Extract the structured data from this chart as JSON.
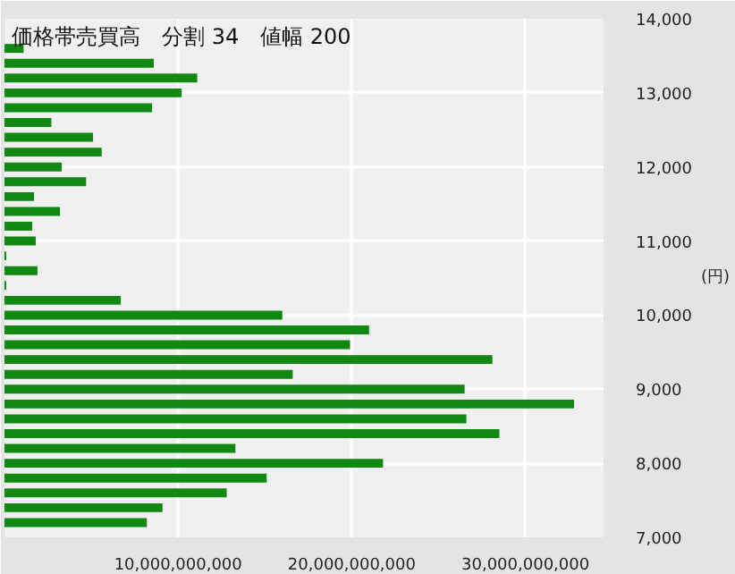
{
  "chart_data": {
    "type": "histogram",
    "orientation": "horizontal",
    "title": "価格帯売買高　分割 34　値幅 200",
    "ylabel": "(円)",
    "color": "#118811",
    "bins": [
      7100,
      7300,
      7500,
      7700,
      7900,
      8100,
      8300,
      8500,
      8700,
      8900,
      9100,
      9300,
      9500,
      9700,
      9900,
      10100,
      10300,
      10500,
      10700,
      10900,
      11100,
      11300,
      11500,
      11700,
      11900,
      12100,
      12300,
      12500,
      12700,
      12900,
      13100,
      13300,
      13500,
      13700
    ],
    "values": [
      8200000000,
      9100000000,
      12800000000,
      15100000000,
      21800000000,
      13300000000,
      28500000000,
      26600000000,
      32800000000,
      26500000000,
      16600000000,
      28100000000,
      19900000000,
      21000000000,
      16000000000,
      6700000000,
      100000000,
      1900000000,
      100000000,
      1800000000,
      1600000000,
      3200000000,
      1700000000,
      4700000000,
      3300000000,
      5600000000,
      5100000000,
      2700000000,
      8500000000,
      10200000000,
      11100000000,
      8600000000,
      1100000000
    ],
    "xlim": [
      0,
      34500000000
    ],
    "ylim": [
      7000,
      14000
    ],
    "xticks": [
      {
        "value": 10000000000,
        "label": "10,000,000,000"
      },
      {
        "value": 20000000000,
        "label": "20,000,000,000"
      },
      {
        "value": 30000000000,
        "label": "30,000,000,000"
      }
    ],
    "yticks": [
      {
        "value": 7000,
        "label": "7,000"
      },
      {
        "value": 8000,
        "label": "8,000"
      },
      {
        "value": 9000,
        "label": "9,000"
      },
      {
        "value": 10000,
        "label": "10,000"
      },
      {
        "value": 11000,
        "label": "11,000"
      },
      {
        "value": 12000,
        "label": "12,000"
      },
      {
        "value": 13000,
        "label": "13,000"
      },
      {
        "value": 14000,
        "label": "14,000"
      }
    ],
    "grid": true
  }
}
